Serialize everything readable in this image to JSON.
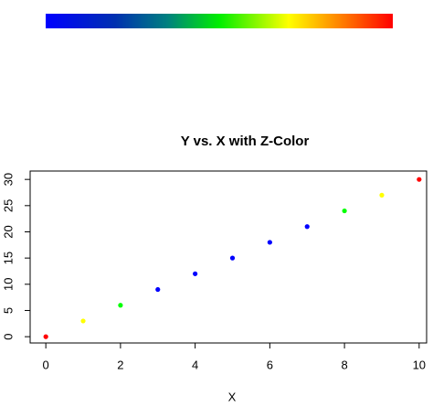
{
  "chart_data": {
    "type": "scatter",
    "title": "Y vs. X with Z-Color",
    "x_label": "X",
    "x": [
      0,
      1,
      2,
      3,
      4,
      5,
      6,
      7,
      8,
      9,
      10
    ],
    "series": [
      {
        "values": [
          0,
          3,
          6,
          9,
          12,
          15,
          18,
          21,
          24,
          27,
          30
        ],
        "colors": [
          "#ff0000",
          "#ffff00",
          "#00ff00",
          "#0000ff",
          "#0000ff",
          "#0000ff",
          "#0000ff",
          "#0000ff",
          "#00ff00",
          "#ffff00",
          "#ff0000"
        ]
      }
    ],
    "xlim": [
      -0.42,
      10.2
    ],
    "xticks": [
      0,
      2,
      4,
      6,
      8,
      10
    ],
    "ylim": [
      -1.2,
      31.6
    ],
    "yticks": [
      0,
      5,
      10,
      15,
      20,
      25,
      30
    ]
  }
}
